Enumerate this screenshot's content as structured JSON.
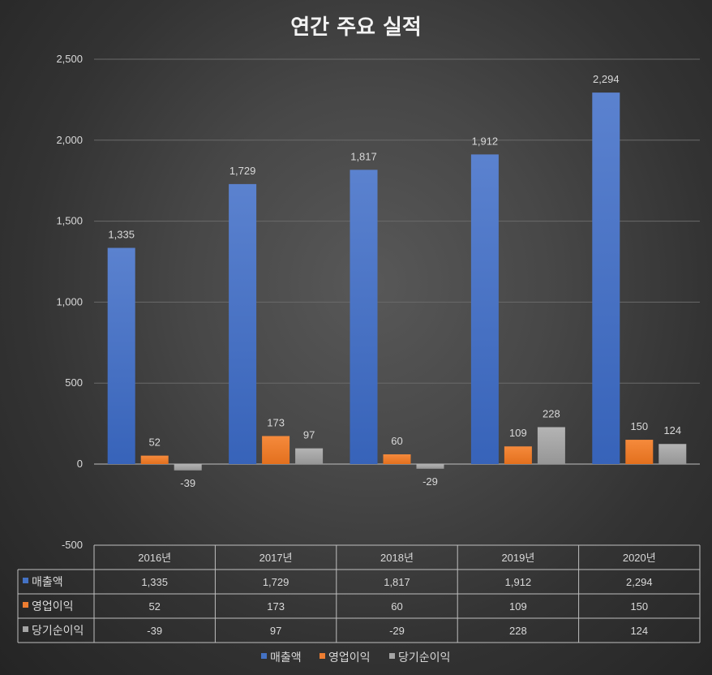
{
  "chart_data": {
    "type": "bar",
    "title": "연간 주요 실적",
    "categories": [
      "2016년",
      "2017년",
      "2018년",
      "2019년",
      "2020년"
    ],
    "series": [
      {
        "name": "매출액",
        "color": "#4472c4",
        "values": [
          1335,
          1729,
          1817,
          1912,
          2294
        ],
        "labels": [
          "1,335",
          "1,729",
          "1,817",
          "1,912",
          "2,294"
        ]
      },
      {
        "name": "영업이익",
        "color": "#ed7d31",
        "values": [
          52,
          173,
          60,
          109,
          150
        ],
        "labels": [
          "52",
          "173",
          "60",
          "109",
          "150"
        ]
      },
      {
        "name": "당기순이익",
        "color": "#a5a5a5",
        "values": [
          -39,
          97,
          -29,
          228,
          124
        ],
        "labels": [
          "-39",
          "97",
          "-29",
          "228",
          "124"
        ]
      }
    ],
    "ylim": [
      -500,
      2500
    ],
    "yticks": [
      2500,
      2000,
      1500,
      1000,
      500,
      0,
      -500
    ],
    "ytick_labels": [
      "2,500",
      "2,000",
      "1,500",
      "1,000",
      "500",
      "0",
      "-500"
    ],
    "grid": true,
    "legend_position": "bottom",
    "data_table": true
  }
}
